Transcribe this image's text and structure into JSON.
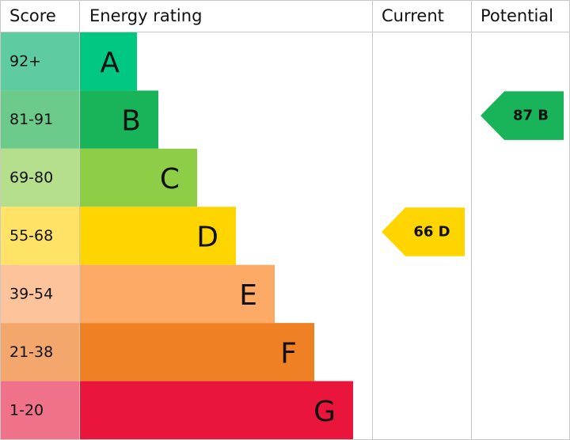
{
  "header": [
    "Score",
    "Energy rating",
    "Current",
    "Potential"
  ],
  "bands": [
    {
      "score": "92+",
      "letter": "A"
    },
    {
      "score": "81-91",
      "letter": "B"
    },
    {
      "score": "69-80",
      "letter": "C"
    },
    {
      "score": "55-68",
      "letter": "D"
    },
    {
      "score": "39-54",
      "letter": "E"
    },
    {
      "score": "21-38",
      "letter": "F"
    },
    {
      "score": "1-20",
      "letter": "G"
    }
  ],
  "current": {
    "label": "66 D"
  },
  "potential": {
    "label": "87 B"
  }
}
